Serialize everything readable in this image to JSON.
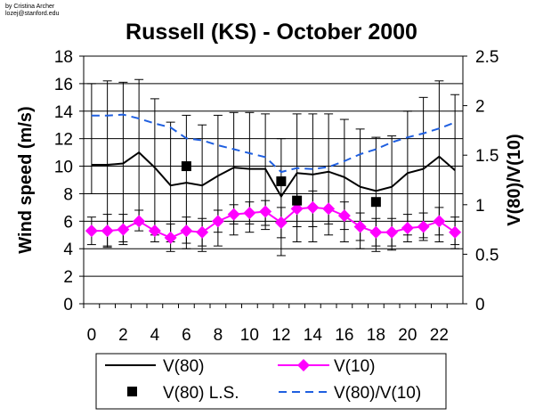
{
  "credit": {
    "line1": "by Cristina Archer",
    "line2": "lozej@stanford.edu"
  },
  "chart_data": {
    "type": "line",
    "title": "Russell (KS) - October 2000",
    "ylabel": "Wind speed (m/s)",
    "y2label": "V(80)/V(10)",
    "xlabel": "",
    "x": [
      0,
      1,
      2,
      3,
      4,
      5,
      6,
      7,
      8,
      9,
      10,
      11,
      12,
      13,
      14,
      15,
      16,
      17,
      18,
      19,
      20,
      21,
      22,
      23
    ],
    "x_ticks": [
      "0",
      "2",
      "4",
      "6",
      "8",
      "10",
      "12",
      "14",
      "16",
      "18",
      "20",
      "22"
    ],
    "ylim": [
      0,
      18
    ],
    "y_ticks": [
      "0",
      "2",
      "4",
      "6",
      "8",
      "10",
      "12",
      "14",
      "16",
      "18"
    ],
    "y2lim": [
      0,
      2.5
    ],
    "y2_ticks": [
      "0",
      "0.5",
      "1",
      "1.5",
      "2",
      "2.5"
    ],
    "grid": "horizontal",
    "legend_position": "bottom",
    "colors": {
      "v80": "#000000",
      "v10": "#ff00ff",
      "ls": "#000000",
      "ratio": "#1f5fe0"
    },
    "series": [
      {
        "name": "V(80)",
        "axis": "left",
        "style": "solid-black-line",
        "values": [
          10.1,
          10.1,
          10.2,
          11.0,
          9.9,
          8.6,
          8.8,
          8.6,
          9.3,
          9.9,
          9.8,
          9.8,
          7.8,
          9.5,
          9.4,
          9.6,
          9.2,
          8.5,
          8.2,
          8.5,
          9.5,
          9.8,
          10.7,
          9.7
        ],
        "err_low": [
          8.0,
          4.2,
          4.5,
          5.8,
          5.0,
          4.5,
          4.0,
          3.8,
          4.2,
          5.0,
          5.2,
          5.4,
          3.5,
          4.5,
          4.5,
          5.0,
          4.5,
          4.0,
          3.8,
          3.9,
          5.0,
          4.8,
          4.5,
          4.0
        ],
        "err_high": [
          16.0,
          16.2,
          16.1,
          16.3,
          14.9,
          13.2,
          13.7,
          13.0,
          13.7,
          13.9,
          13.9,
          13.8,
          12.0,
          13.8,
          13.8,
          13.8,
          13.4,
          12.7,
          12.1,
          12.2,
          14.0,
          15.0,
          16.2,
          15.2
        ]
      },
      {
        "name": "V(10)",
        "axis": "left",
        "style": "magenta-diamond-line",
        "values": [
          5.3,
          5.3,
          5.4,
          6.0,
          5.3,
          4.8,
          5.3,
          5.2,
          6.0,
          6.5,
          6.6,
          6.7,
          5.9,
          6.9,
          7.0,
          6.9,
          6.4,
          5.6,
          5.2,
          5.2,
          5.5,
          5.6,
          6.0,
          5.2
        ],
        "err_low": [
          4.3,
          4.1,
          4.3,
          5.3,
          4.5,
          3.8,
          4.4,
          4.2,
          5.2,
          5.8,
          5.8,
          5.7,
          4.8,
          5.6,
          5.6,
          5.8,
          5.4,
          4.6,
          4.2,
          4.2,
          4.5,
          4.6,
          5.0,
          4.3
        ],
        "err_high": [
          6.3,
          6.5,
          6.5,
          6.8,
          6.0,
          5.8,
          6.3,
          6.2,
          6.8,
          7.2,
          7.4,
          7.5,
          7.0,
          8.0,
          8.2,
          8.0,
          7.4,
          6.6,
          6.2,
          6.2,
          6.5,
          6.6,
          7.0,
          6.3
        ]
      },
      {
        "name": "V(80) L.S.",
        "axis": "left",
        "style": "black-square-markers",
        "x": [
          6,
          12,
          13,
          18
        ],
        "values": [
          10.0,
          8.9,
          7.5,
          7.4
        ]
      },
      {
        "name": "V(80)/V(10)",
        "axis": "right",
        "style": "dashed-blue-line",
        "values": [
          1.9,
          1.9,
          1.91,
          1.87,
          1.82,
          1.78,
          1.67,
          1.65,
          1.6,
          1.56,
          1.52,
          1.48,
          1.33,
          1.37,
          1.36,
          1.38,
          1.44,
          1.51,
          1.56,
          1.63,
          1.68,
          1.72,
          1.77,
          1.83
        ]
      }
    ]
  }
}
